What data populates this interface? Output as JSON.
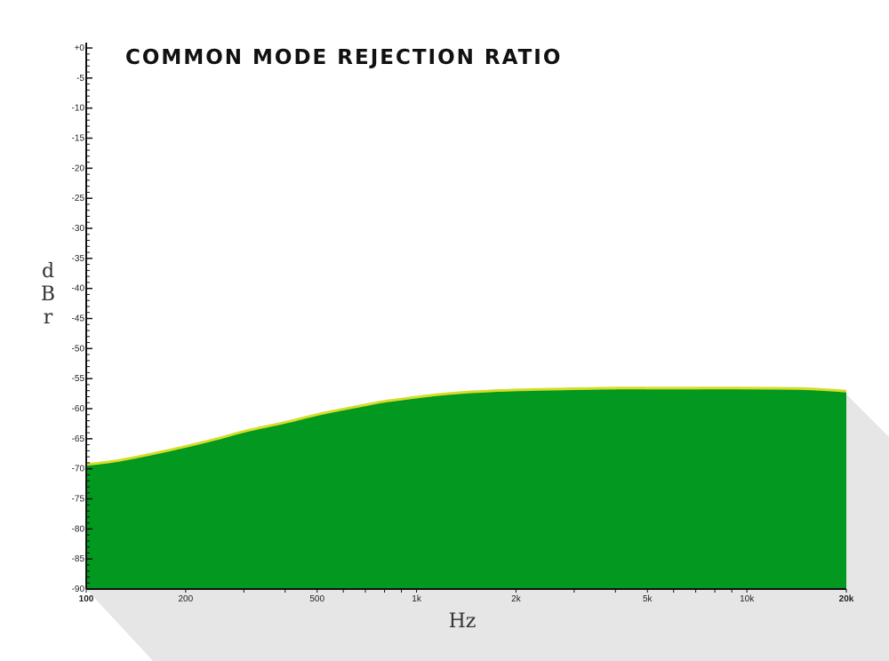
{
  "chart_data": {
    "type": "area",
    "title": "COMMON MODE REJECTION RATIO",
    "xlabel": "Hz",
    "ylabel": "dBr",
    "xscale": "log",
    "xlim": [
      100,
      20000
    ],
    "ylim": [
      -90,
      0
    ],
    "x_ticks": [
      100,
      200,
      500,
      1000,
      2000,
      5000,
      10000,
      20000
    ],
    "x_tick_labels": [
      "100",
      "200",
      "500",
      "1k",
      "2k",
      "5k",
      "10k",
      "20k"
    ],
    "y_ticks": [
      0,
      -5,
      -10,
      -15,
      -20,
      -25,
      -30,
      -35,
      -40,
      -45,
      -50,
      -55,
      -60,
      -65,
      -70,
      -75,
      -80,
      -85,
      -90
    ],
    "y_tick_labels": [
      "+0",
      "-5",
      "-10",
      "-15",
      "-20",
      "-25",
      "-30",
      "-35",
      "-40",
      "-45",
      "-50",
      "-55",
      "-60",
      "-65",
      "-70",
      "-75",
      "-80",
      "-85",
      "-90"
    ],
    "grid": false,
    "colors": {
      "fill": "#039820",
      "edge": "#d6dc28",
      "shadow": "#e6e6e6"
    },
    "series": [
      {
        "x": [
          100,
          120,
          150,
          200,
          250,
          300,
          400,
          500,
          600,
          700,
          800,
          1000,
          1200,
          1500,
          2000,
          3000,
          4000,
          5000,
          7000,
          10000,
          15000,
          20000
        ],
        "y": [
          -69.5,
          -69.0,
          -68.0,
          -66.5,
          -65.2,
          -64.0,
          -62.5,
          -61.2,
          -60.3,
          -59.6,
          -59.0,
          -58.3,
          -57.8,
          -57.4,
          -57.1,
          -56.9,
          -56.8,
          -56.8,
          -56.8,
          -56.8,
          -56.9,
          -57.3
        ]
      }
    ]
  }
}
